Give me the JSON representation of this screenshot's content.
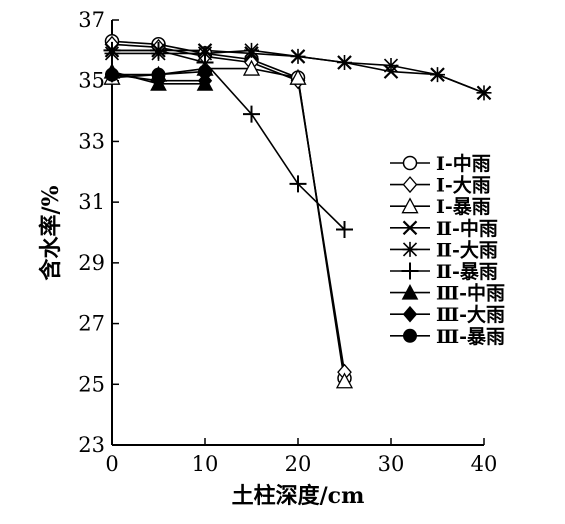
{
  "chart_data": {
    "type": "line",
    "xlabel": "土柱深度/cm",
    "ylabel": "含水率/%",
    "xlim": [
      0,
      40
    ],
    "ylim": [
      23,
      37
    ],
    "xticks": [
      0,
      10,
      20,
      30,
      40
    ],
    "yticks": [
      23,
      25,
      27,
      29,
      31,
      33,
      35,
      37
    ],
    "grid": false,
    "legend_position": "right",
    "series": [
      {
        "name": "Ⅰ-中雨",
        "marker": "circle-open",
        "x": [
          0,
          5,
          10,
          15,
          20,
          25
        ],
        "y": [
          36.3,
          36.2,
          35.9,
          35.7,
          35.1,
          25.2
        ]
      },
      {
        "name": "Ⅰ-大雨",
        "marker": "diamond-open",
        "x": [
          0,
          5,
          10,
          15,
          20,
          25
        ],
        "y": [
          36.2,
          36.1,
          35.8,
          35.6,
          35.0,
          25.4
        ]
      },
      {
        "name": "Ⅰ-暴雨",
        "marker": "triangle-open",
        "x": [
          0,
          5,
          10,
          15,
          20,
          25
        ],
        "y": [
          35.1,
          35.2,
          35.4,
          35.4,
          35.1,
          25.1
        ]
      },
      {
        "name": "Ⅱ-中雨",
        "marker": "x",
        "x": [
          0,
          5,
          10,
          15,
          20,
          25,
          30,
          35,
          40
        ],
        "y": [
          36.0,
          36.0,
          36.0,
          35.9,
          35.8,
          35.6,
          35.3,
          35.2,
          34.6
        ]
      },
      {
        "name": "Ⅱ-大雨",
        "marker": "asterisk",
        "x": [
          0,
          5,
          10,
          15,
          20,
          25,
          30,
          35,
          40
        ],
        "y": [
          35.9,
          35.9,
          35.9,
          36.0,
          35.8,
          35.6,
          35.5,
          35.2,
          34.6
        ]
      },
      {
        "name": "Ⅱ-暴雨",
        "marker": "plus",
        "x": [
          0,
          5,
          10,
          15,
          20,
          25
        ],
        "y": [
          36.0,
          36.0,
          35.6,
          33.9,
          31.6,
          30.1
        ]
      },
      {
        "name": "Ⅲ-中雨",
        "marker": "triangle-filled",
        "x": [
          0,
          5,
          10
        ],
        "y": [
          35.3,
          34.9,
          34.9
        ]
      },
      {
        "name": "Ⅲ-大雨",
        "marker": "diamond-filled",
        "x": [
          0,
          5,
          10
        ],
        "y": [
          35.2,
          35.0,
          35.0
        ]
      },
      {
        "name": "Ⅲ-暴雨",
        "marker": "circle-filled",
        "x": [
          0,
          5,
          10
        ],
        "y": [
          35.2,
          35.2,
          35.3
        ]
      }
    ]
  }
}
